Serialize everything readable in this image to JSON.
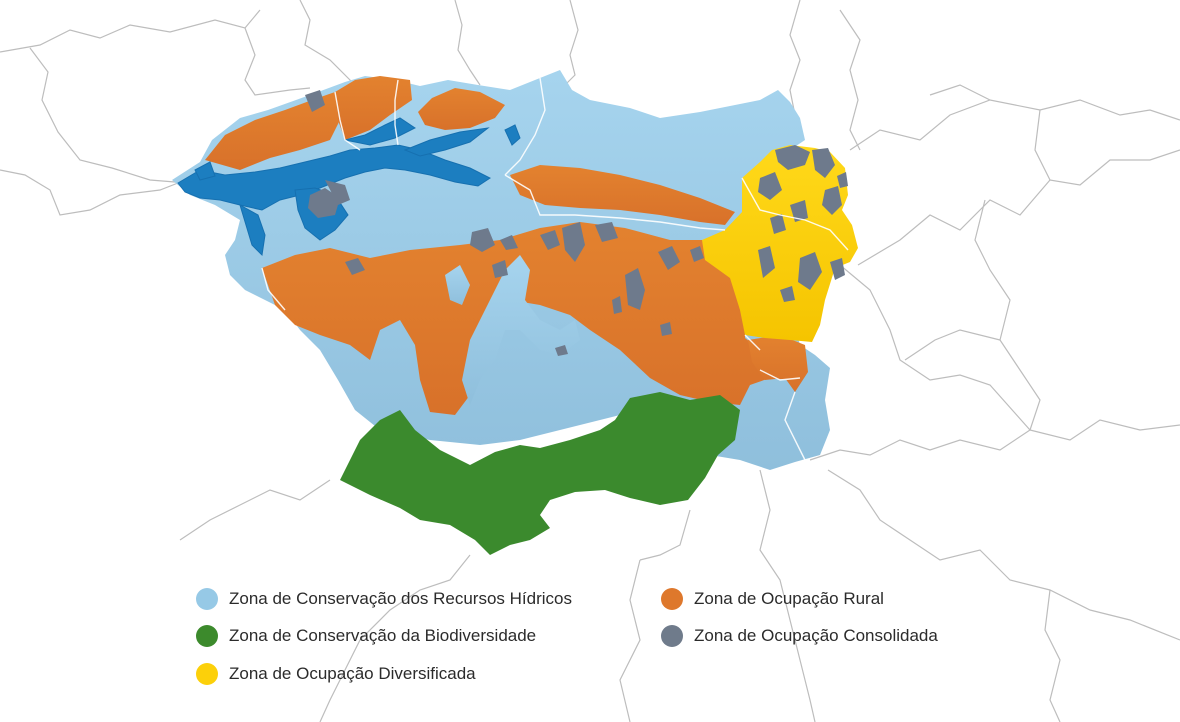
{
  "legend": {
    "items": [
      {
        "label": "Zona de Conservação dos Recursos Hídricos",
        "color": "#96c9e6"
      },
      {
        "label": "Zona de Ocupação Rural",
        "color": "#de782c"
      },
      {
        "label": "Zona de Conservação da Biodiversidade",
        "color": "#3c8a2c"
      },
      {
        "label": "Zona de Ocupação Consolidada",
        "color": "#6f7b8b"
      },
      {
        "label": "Zona de Ocupação Diversificada",
        "color": "#fcd00a"
      }
    ]
  },
  "colors": {
    "water_body": "#1f7fbf",
    "boundary_line": "#b9b9b9",
    "internal_border": "#ffffff"
  },
  "icons": [
    "location-map",
    "zone-swatch-circle"
  ]
}
